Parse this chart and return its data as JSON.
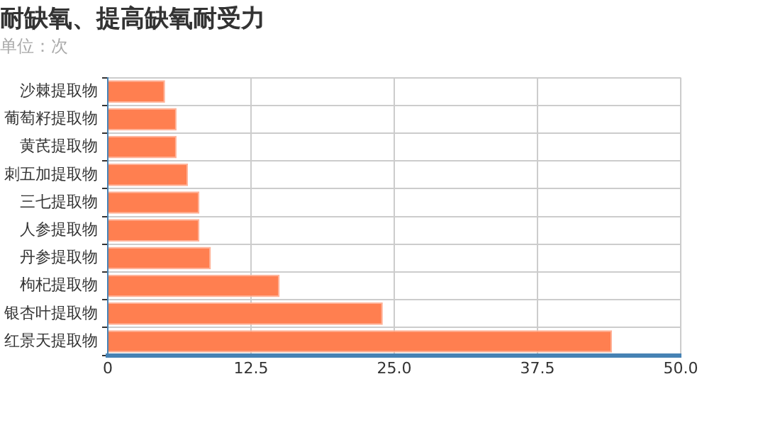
{
  "chart_data": {
    "type": "bar",
    "title": "耐缺氧、提高缺氧耐受力",
    "subtitle": "单位：次",
    "orientation": "horizontal",
    "categories": [
      "沙棘提取物",
      "葡萄籽提取物",
      "黄芪提取物",
      "刺五加提取物",
      "三七提取物",
      "人参提取物",
      "丹参提取物",
      "枸杞提取物",
      "银杏叶提取物",
      "红景天提取物"
    ],
    "values": [
      5,
      6,
      6,
      7,
      8,
      8,
      9,
      15,
      24,
      44
    ],
    "color": "#ff7f50",
    "xlim": [
      0,
      50
    ],
    "xticks": [
      0,
      {
        "value": 12.5,
        "label": "12.5"
      },
      {
        "value": 25,
        "label": "25.0"
      },
      {
        "value": 37.5,
        "label": "37.5"
      },
      {
        "value": 50,
        "label": "50.0"
      }
    ],
    "grid": true,
    "legend": false
  }
}
